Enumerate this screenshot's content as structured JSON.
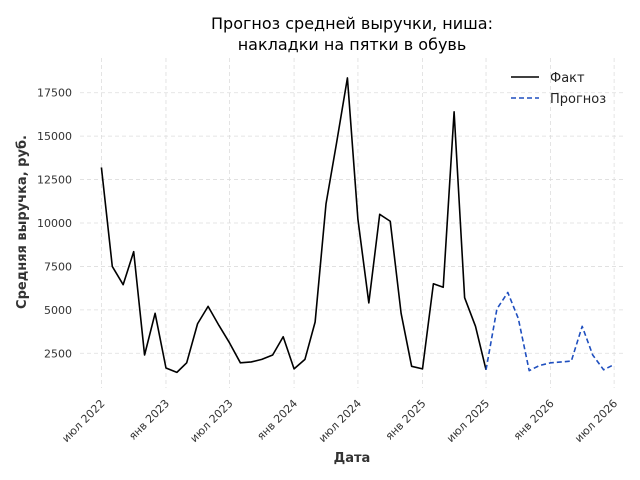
{
  "chart_data": {
    "type": "line",
    "title": [
      "Прогноз средней выручки, ниша:",
      "накладки на пятки в обувь"
    ],
    "xlabel": "Дата",
    "ylabel": "Средняя выручка, руб.",
    "xlim": [
      "2022-05-01",
      "2026-08-01"
    ],
    "ylim": [
      500,
      19500
    ],
    "yticks": [
      2500,
      5000,
      7500,
      10000,
      12500,
      15000,
      17500
    ],
    "ytick_labels": [
      "2500",
      "5000",
      "7500",
      "10000",
      "12500",
      "15000",
      "17500"
    ],
    "xticks": [
      "2022-07-01",
      "2023-01-01",
      "2023-07-01",
      "2024-01-01",
      "2024-07-01",
      "2025-01-01",
      "2025-07-01",
      "2026-01-01",
      "2026-07-01"
    ],
    "xtick_labels": [
      "июл 2022",
      "янв 2023",
      "июл 2023",
      "янв 2024",
      "июл 2024",
      "янв 2025",
      "июл 2025",
      "янв 2026",
      "июл 2026"
    ],
    "grid": true,
    "legend_position": "top-right",
    "series": [
      {
        "name": "Факт",
        "color": "#000000",
        "dash": "solid",
        "points": [
          [
            "2022-07-01",
            13200
          ],
          [
            "2022-08-01",
            7500
          ],
          [
            "2022-09-01",
            6450
          ],
          [
            "2022-10-01",
            8350
          ],
          [
            "2022-11-01",
            2400
          ],
          [
            "2022-12-01",
            4800
          ],
          [
            "2023-01-01",
            1650
          ],
          [
            "2023-02-01",
            1400
          ],
          [
            "2023-03-01",
            1950
          ],
          [
            "2023-04-01",
            4200
          ],
          [
            "2023-05-01",
            5200
          ],
          [
            "2023-06-01",
            4100
          ],
          [
            "2023-07-01",
            3100
          ],
          [
            "2023-08-01",
            1950
          ],
          [
            "2023-09-01",
            2000
          ],
          [
            "2023-10-01",
            2150
          ],
          [
            "2023-11-01",
            2400
          ],
          [
            "2023-12-01",
            3450
          ],
          [
            "2024-01-01",
            1600
          ],
          [
            "2024-02-01",
            2150
          ],
          [
            "2024-03-01",
            4300
          ],
          [
            "2024-04-01",
            11100
          ],
          [
            "2024-05-01",
            14600
          ],
          [
            "2024-06-01",
            18350
          ],
          [
            "2024-07-01",
            10200
          ],
          [
            "2024-08-01",
            5400
          ],
          [
            "2024-09-01",
            10500
          ],
          [
            "2024-10-01",
            10100
          ],
          [
            "2024-11-01",
            4800
          ],
          [
            "2024-12-01",
            1750
          ],
          [
            "2025-01-01",
            1600
          ],
          [
            "2025-02-01",
            6500
          ],
          [
            "2025-03-01",
            6300
          ],
          [
            "2025-04-01",
            16400
          ],
          [
            "2025-05-01",
            5700
          ],
          [
            "2025-06-01",
            4050
          ],
          [
            "2025-07-01",
            1550
          ]
        ]
      },
      {
        "name": "Прогноз",
        "color": "#1f4fbf",
        "dash": "dashed",
        "points": [
          [
            "2025-07-01",
            1550
          ],
          [
            "2025-08-01",
            5050
          ],
          [
            "2025-09-01",
            6000
          ],
          [
            "2025-10-01",
            4500
          ],
          [
            "2025-11-01",
            1500
          ],
          [
            "2025-12-01",
            1800
          ],
          [
            "2026-01-01",
            1950
          ],
          [
            "2026-02-01",
            2000
          ],
          [
            "2026-03-01",
            2050
          ],
          [
            "2026-04-01",
            4050
          ],
          [
            "2026-05-01",
            2400
          ],
          [
            "2026-06-01",
            1550
          ],
          [
            "2026-07-01",
            1850
          ]
        ]
      }
    ]
  }
}
